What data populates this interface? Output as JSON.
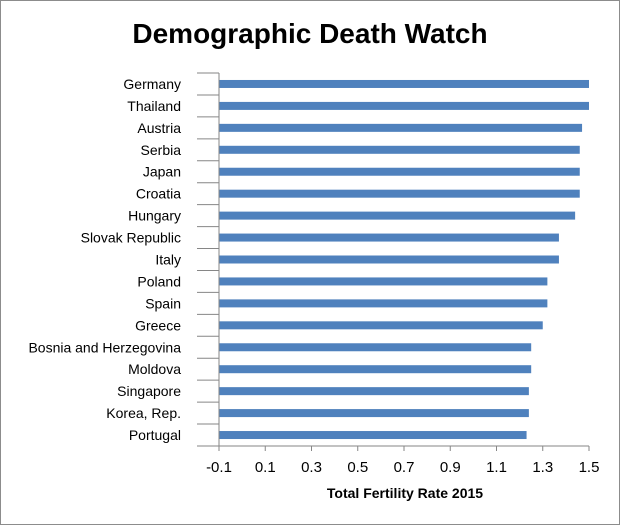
{
  "chart_data": {
    "type": "bar",
    "orientation": "horizontal",
    "title": "Demographic Death Watch",
    "xlabel": "Total Fertility Rate 2015",
    "ylabel": "",
    "categories": [
      "Germany",
      "Thailand",
      "Austria",
      "Serbia",
      "Japan",
      "Croatia",
      "Hungary",
      "Slovak Republic",
      "Italy",
      "Poland",
      "Spain",
      "Greece",
      "Bosnia and Herzegovina",
      "Moldova",
      "Singapore",
      "Korea, Rep.",
      "Portugal"
    ],
    "values": [
      1.5,
      1.5,
      1.47,
      1.46,
      1.46,
      1.46,
      1.44,
      1.37,
      1.37,
      1.32,
      1.32,
      1.3,
      1.25,
      1.25,
      1.24,
      1.24,
      1.23
    ],
    "xlim": [
      -0.1,
      1.5
    ],
    "ticks": [
      "-0.1",
      "0.1",
      "0.3",
      "0.5",
      "0.7",
      "0.9",
      "1.1",
      "1.3",
      "1.5"
    ],
    "bar_color": "#4f81bd",
    "grid": false,
    "legend": "none"
  }
}
